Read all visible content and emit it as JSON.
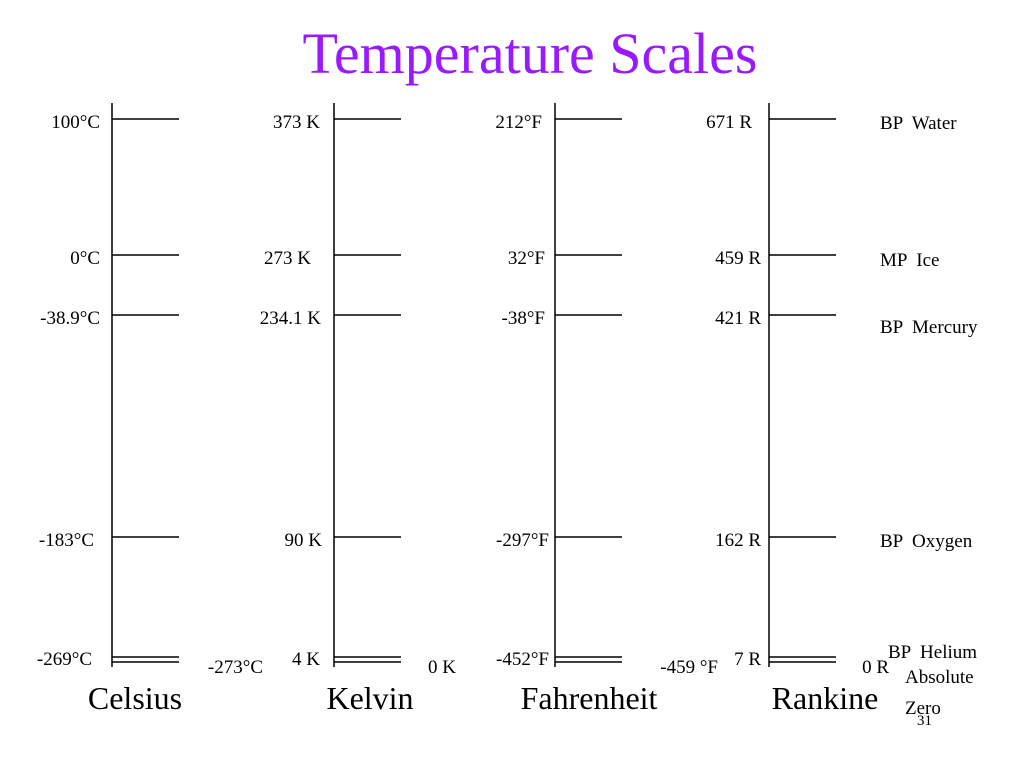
{
  "slide": {
    "title": "Temperature Scales",
    "title_color": "#9a1aff",
    "page_number": "31"
  },
  "scales": [
    {
      "name": "Celsius",
      "ticks": [
        {
          "label": "100°C",
          "value": 100
        },
        {
          "label": "0°C",
          "value": 0
        },
        {
          "label": "-38.9°C",
          "value": -38.9
        },
        {
          "label": "-183°C",
          "value": -183
        },
        {
          "label": "-269°C",
          "value": -269
        },
        {
          "label": "-273°C",
          "value": -273
        }
      ]
    },
    {
      "name": "Kelvin",
      "ticks": [
        {
          "label": "373 K",
          "value": 373
        },
        {
          "label": "273 K",
          "value": 273
        },
        {
          "label": "234.1 K",
          "value": 234.1
        },
        {
          "label": "90 K",
          "value": 90
        },
        {
          "label": "4 K",
          "value": 4
        },
        {
          "label": "0 K",
          "value": 0
        }
      ]
    },
    {
      "name": "Fahrenheit",
      "ticks": [
        {
          "label": "212°F",
          "value": 212
        },
        {
          "label": "32°F",
          "value": 32
        },
        {
          "label": "-38°F",
          "value": -38
        },
        {
          "label": "-297°F",
          "value": -297
        },
        {
          "label": "-452°F",
          "value": -452
        },
        {
          "label": "-459 °F",
          "value": -459
        }
      ]
    },
    {
      "name": "Rankine",
      "ticks": [
        {
          "label": "671 R",
          "value": 671
        },
        {
          "label": "459 R",
          "value": 459
        },
        {
          "label": "421 R",
          "value": 421
        },
        {
          "label": "162 R",
          "value": 162
        },
        {
          "label": "7 R",
          "value": 7
        },
        {
          "label": "0 R",
          "value": 0
        }
      ]
    }
  ],
  "reference_points": [
    "BP  Water",
    "MP  Ice",
    "BP  Mercury",
    "BP  Oxygen",
    "BP  Helium",
    "Absolute Zero"
  ]
}
